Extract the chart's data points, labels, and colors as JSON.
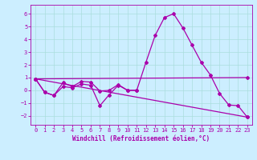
{
  "xlabel": "Windchill (Refroidissement éolien,°C)",
  "background_color": "#cceeff",
  "grid_color": "#aadddd",
  "line_color": "#aa00aa",
  "spine_color": "#aa00aa",
  "xlim": [
    -0.5,
    23.5
  ],
  "ylim": [
    -2.7,
    6.7
  ],
  "yticks": [
    -2,
    -1,
    0,
    1,
    2,
    3,
    4,
    5,
    6
  ],
  "xticks": [
    0,
    1,
    2,
    3,
    4,
    5,
    6,
    7,
    8,
    9,
    10,
    11,
    12,
    13,
    14,
    15,
    16,
    17,
    18,
    19,
    20,
    21,
    22,
    23
  ],
  "line1_x": [
    0,
    1,
    2,
    3,
    4,
    5,
    6,
    7,
    8,
    9,
    10,
    11,
    12,
    13,
    14,
    15,
    16,
    17,
    18,
    19,
    20,
    21,
    22,
    23
  ],
  "line1_y": [
    0.9,
    -0.15,
    -0.4,
    0.6,
    0.3,
    0.7,
    0.65,
    -0.05,
    0.0,
    0.45,
    0.0,
    0.0,
    2.2,
    4.3,
    5.7,
    6.0,
    4.9,
    3.55,
    2.2,
    1.2,
    -0.25,
    -1.15,
    -1.2,
    -2.1
  ],
  "line2_x": [
    0,
    1,
    2,
    3,
    4,
    5,
    6,
    7,
    8,
    9,
    10,
    11
  ],
  "line2_y": [
    0.9,
    -0.15,
    -0.4,
    0.3,
    0.2,
    0.5,
    0.4,
    -1.2,
    -0.35,
    0.4,
    0.0,
    0.0
  ],
  "line3_x": [
    0,
    23
  ],
  "line3_y": [
    0.9,
    -2.1
  ],
  "line4_x": [
    0,
    23
  ],
  "line4_y": [
    0.9,
    1.0
  ],
  "tick_labelsize": 5,
  "xlabel_fontsize": 5.5,
  "marker": "D",
  "markersize": 2.0,
  "linewidth": 0.9
}
